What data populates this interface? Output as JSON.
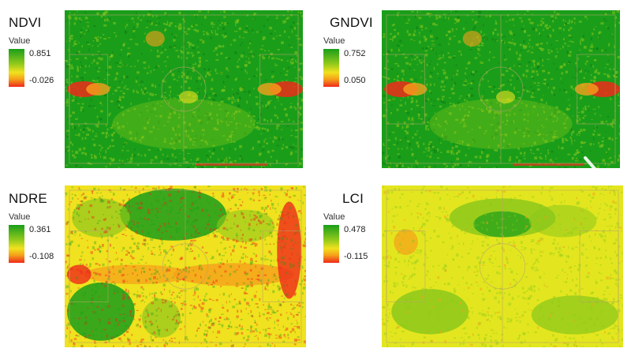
{
  "panels": [
    {
      "index": "ndvi",
      "title": "NDVI",
      "legend": {
        "heading": "Value",
        "max": "0.851",
        "min": "-0.026"
      },
      "dominant_condition": "mostly green, red patches at goal areas"
    },
    {
      "index": "gndvi",
      "title": "GNDVI",
      "legend": {
        "heading": "Value",
        "max": "0.752",
        "min": "0.050"
      },
      "dominant_condition": "mostly green, red patches at goal areas"
    },
    {
      "index": "ndre",
      "title": "NDRE",
      "legend": {
        "heading": "Value",
        "max": "0.361",
        "min": "-0.108"
      },
      "dominant_condition": "mixed green, yellow and red bands"
    },
    {
      "index": "lci",
      "title": "LCI",
      "legend": {
        "heading": "Value",
        "max": "0.478",
        "min": "-0.115"
      },
      "dominant_condition": "yellow with green blotches, few red"
    }
  ],
  "colors": {
    "high": "#1a9e1a",
    "mid_high": "#8dc81b",
    "mid": "#f0e21e",
    "mid_low": "#f5a01a",
    "low": "#ee2a1a",
    "field_lines": "#b9a26a"
  },
  "navigation": {
    "prev_icon": "chevron-left-icon",
    "next_icon": "chevron-right-icon"
  }
}
